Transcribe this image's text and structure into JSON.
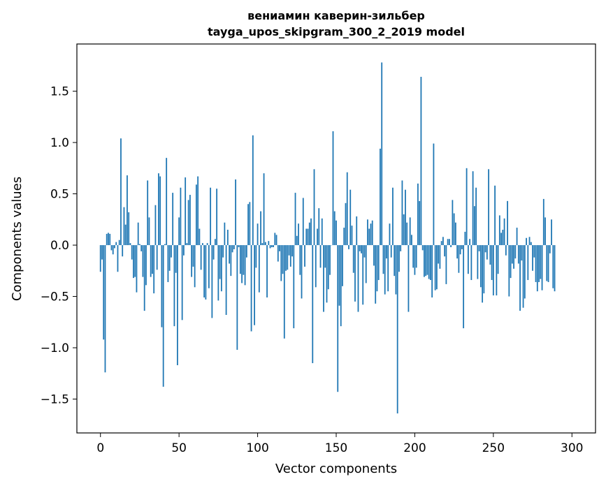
{
  "chart_data": {
    "type": "bar",
    "title": "вениамин каверин-зильбер",
    "subtitle": "tayga_upos_skipgram_300_2_2019 model",
    "xlabel": "Vector components",
    "ylabel": "Components values",
    "xlim": [
      -15,
      315
    ],
    "ylim": [
      -1.83,
      1.96
    ],
    "x_ticks": [
      0,
      50,
      100,
      150,
      200,
      250,
      300
    ],
    "y_ticks": [
      -1.5,
      -1.0,
      -0.5,
      0.0,
      0.5,
      1.0,
      1.5
    ],
    "x_tick_labels": [
      "0",
      "50",
      "100",
      "150",
      "200",
      "250",
      "300"
    ],
    "y_tick_labels": [
      "−1.5",
      "−1.0",
      "−0.5",
      "0.0",
      "0.5",
      "1.0",
      "1.5"
    ],
    "bar_color": "#1f77b4",
    "grid": false,
    "values": [
      -0.26,
      -0.14,
      -0.92,
      -1.24,
      0.11,
      0.12,
      0.11,
      -0.05,
      -0.09,
      -0.03,
      0.03,
      -0.26,
      0.05,
      1.04,
      -0.11,
      0.37,
      0.2,
      0.68,
      0.32,
      0.02,
      -0.14,
      -0.32,
      -0.31,
      -0.46,
      0.22,
      0.01,
      -0.06,
      -0.31,
      -0.64,
      -0.39,
      0.63,
      0.27,
      -0.31,
      -0.28,
      -0.47,
      0.39,
      -0.24,
      0.7,
      0.67,
      -0.8,
      -1.38,
      0.01,
      0.85,
      -0.36,
      -0.25,
      -0.12,
      0.51,
      -0.79,
      -0.27,
      -1.17,
      0.27,
      0.56,
      -0.73,
      -0.1,
      0.66,
      0.02,
      0.44,
      0.49,
      -0.31,
      -0.21,
      -0.41,
      0.59,
      0.67,
      0.16,
      -0.24,
      0.02,
      -0.51,
      -0.53,
      0.02,
      -0.42,
      0.56,
      -0.71,
      -0.14,
      0.06,
      0.55,
      -0.54,
      -0.33,
      -0.45,
      -0.12,
      0.22,
      -0.68,
      0.15,
      -0.18,
      -0.3,
      -0.07,
      -0.04,
      0.64,
      -1.02,
      -0.02,
      -0.28,
      -0.37,
      -0.29,
      -0.39,
      -0.12,
      0.4,
      0.42,
      -0.84,
      1.07,
      -0.78,
      -0.22,
      0.21,
      -0.46,
      0.33,
      0.02,
      0.7,
      0.03,
      -0.51,
      0.04,
      -0.03,
      -0.02,
      -0.02,
      0.12,
      0.1,
      -0.16,
      -0.06,
      -0.35,
      -0.28,
      -0.91,
      -0.25,
      -0.24,
      -0.1,
      -0.21,
      -0.11,
      -0.81,
      0.51,
      0.09,
      0.21,
      -0.29,
      -0.52,
      0.46,
      -0.21,
      0.16,
      0.16,
      0.22,
      0.26,
      -1.15,
      0.74,
      -0.41,
      0.16,
      0.36,
      -0.22,
      0.26,
      -0.65,
      -0.22,
      -0.56,
      -0.43,
      -0.29,
      0.0,
      1.11,
      0.33,
      0.24,
      -1.43,
      -0.59,
      -0.79,
      -0.4,
      0.17,
      0.41,
      0.71,
      -0.04,
      0.54,
      0.19,
      -0.27,
      -0.55,
      0.28,
      -0.65,
      -0.06,
      -0.08,
      -0.58,
      -0.12,
      -0.37,
      0.25,
      0.16,
      0.21,
      0.24,
      -0.2,
      -0.57,
      -0.45,
      -0.34,
      0.94,
      1.78,
      -0.28,
      -0.48,
      -0.13,
      -0.45,
      0.21,
      -0.12,
      0.56,
      -0.3,
      -0.48,
      -1.64,
      -0.26,
      -0.06,
      0.63,
      0.3,
      0.54,
      0.22,
      -0.65,
      0.27,
      0.1,
      -0.22,
      -0.29,
      -0.22,
      0.6,
      0.43,
      1.64,
      -0.05,
      -0.31,
      -0.3,
      -0.29,
      -0.33,
      -0.34,
      -0.51,
      0.99,
      -0.44,
      -0.43,
      -0.18,
      -0.23,
      0.04,
      0.08,
      -0.11,
      -0.38,
      0.06,
      0.06,
      -0.02,
      0.44,
      0.31,
      0.22,
      -0.13,
      -0.27,
      -0.09,
      -0.04,
      -0.81,
      0.13,
      0.75,
      -0.28,
      0.06,
      -0.34,
      0.72,
      0.38,
      0.56,
      -0.33,
      -0.06,
      -0.41,
      -0.56,
      -0.47,
      -0.07,
      -0.14,
      0.74,
      -0.19,
      -0.34,
      -0.49,
      0.58,
      -0.49,
      -0.28,
      0.29,
      0.12,
      0.15,
      0.26,
      -0.1,
      0.43,
      -0.5,
      -0.32,
      -0.18,
      -0.23,
      -0.13,
      0.17,
      -0.18,
      -0.64,
      -0.15,
      -0.61,
      -0.52,
      0.07,
      -0.34,
      0.08,
      0.03,
      -0.25,
      -0.12,
      -0.36,
      -0.45,
      -0.36,
      -0.33,
      -0.44,
      0.45,
      0.27,
      -0.35,
      -0.36,
      -0.08,
      0.25,
      -0.42,
      -0.45
    ]
  }
}
